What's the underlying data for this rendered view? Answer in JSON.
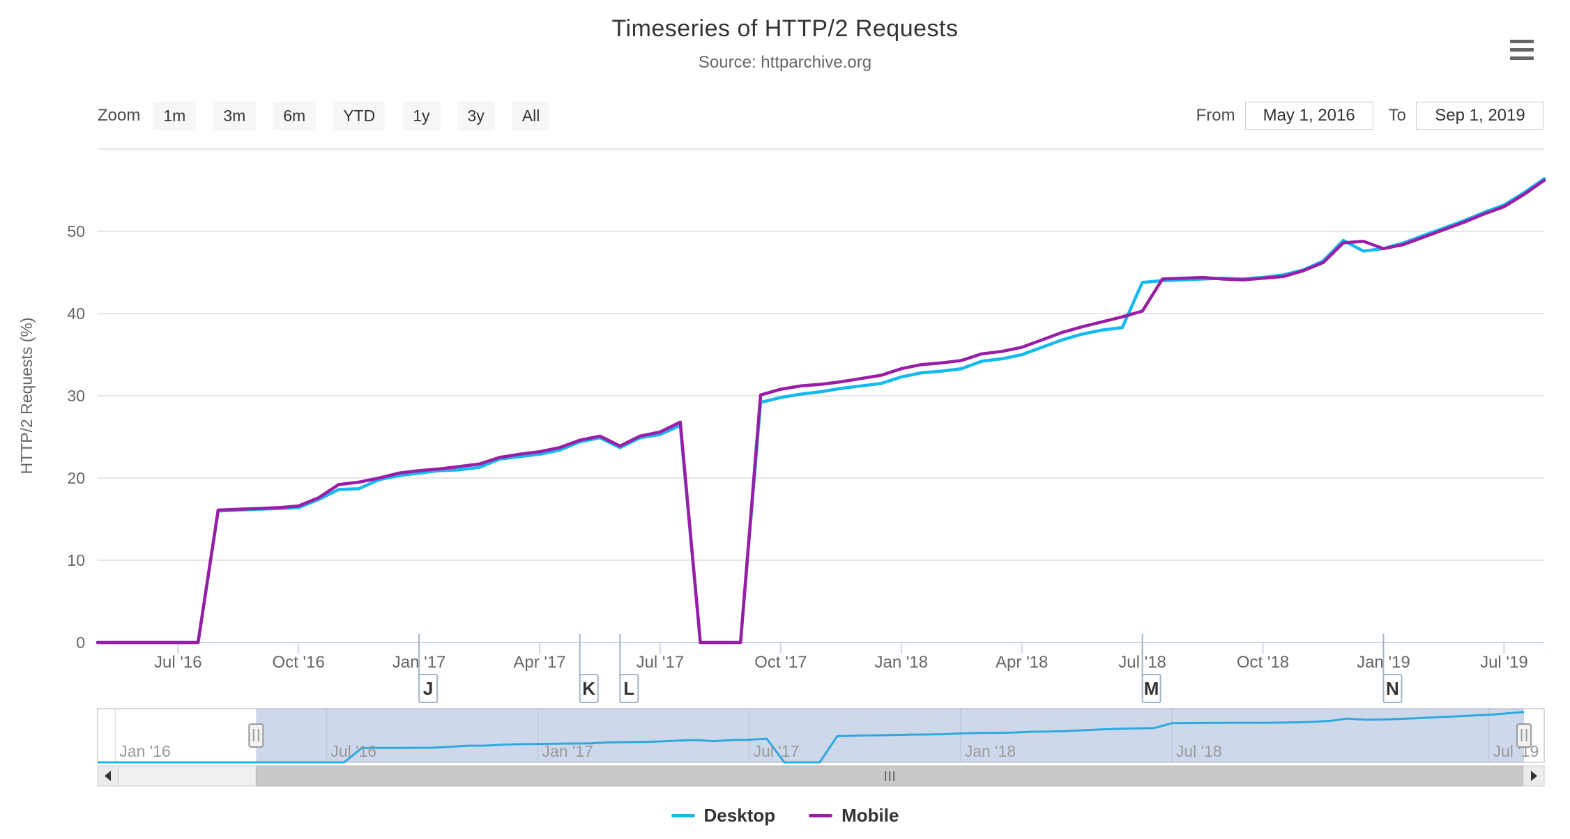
{
  "header": {
    "title": "Timeseries of HTTP/2 Requests",
    "subtitle": "Source: httparchive.org"
  },
  "toolbar": {
    "zoom_label": "Zoom",
    "zoom_buttons": [
      "1m",
      "3m",
      "6m",
      "YTD",
      "1y",
      "3y",
      "All"
    ],
    "from_label": "From",
    "from_value": "May 1, 2016",
    "to_label": "To",
    "to_value": "Sep 1, 2019"
  },
  "menu_icon": "hamburger-menu",
  "legend": [
    {
      "name": "Desktop",
      "color": "#14b9f0"
    },
    {
      "name": "Mobile",
      "color": "#9a1da6"
    }
  ],
  "chart_data": {
    "type": "line",
    "title": "Timeseries of HTTP/2 Requests",
    "subtitle": "Source: httparchive.org",
    "ylabel": "HTTP/2 Requests (%)",
    "ylim": [
      0,
      60
    ],
    "y_ticks": [
      0,
      10,
      20,
      30,
      40,
      50
    ],
    "grid": true,
    "legend_position": "bottom",
    "x_dates": [
      "2016-05-01",
      "2016-05-15",
      "2016-06-01",
      "2016-06-15",
      "2016-07-01",
      "2016-07-15",
      "2016-08-01",
      "2016-08-15",
      "2016-09-01",
      "2016-09-15",
      "2016-10-01",
      "2016-10-15",
      "2016-11-01",
      "2016-11-15",
      "2016-12-01",
      "2016-12-15",
      "2017-01-01",
      "2017-01-15",
      "2017-02-01",
      "2017-02-15",
      "2017-03-01",
      "2017-03-15",
      "2017-04-01",
      "2017-04-15",
      "2017-05-01",
      "2017-05-15",
      "2017-06-01",
      "2017-06-15",
      "2017-07-01",
      "2017-07-15",
      "2017-08-01",
      "2017-08-15",
      "2017-09-01",
      "2017-09-15",
      "2017-10-01",
      "2017-10-15",
      "2017-11-01",
      "2017-11-15",
      "2017-12-01",
      "2017-12-15",
      "2018-01-01",
      "2018-01-15",
      "2018-02-01",
      "2018-02-15",
      "2018-03-01",
      "2018-03-15",
      "2018-04-01",
      "2018-04-15",
      "2018-05-01",
      "2018-05-15",
      "2018-06-01",
      "2018-06-15",
      "2018-07-01",
      "2018-07-15",
      "2018-08-01",
      "2018-08-15",
      "2018-09-01",
      "2018-09-15",
      "2018-10-01",
      "2018-10-15",
      "2018-11-01",
      "2018-11-15",
      "2018-12-01",
      "2018-12-15",
      "2019-01-01",
      "2019-02-01",
      "2019-03-01",
      "2019-04-01",
      "2019-05-01",
      "2019-06-01",
      "2019-07-01",
      "2019-08-01",
      "2019-09-01"
    ],
    "series": [
      {
        "name": "Desktop",
        "color": "#14b9f0",
        "values": [
          0,
          0,
          0,
          0,
          0,
          0,
          16,
          16.1,
          16.2,
          16.3,
          16.4,
          17.4,
          18.6,
          18.7,
          19.8,
          20.3,
          20.6,
          20.9,
          21,
          21.3,
          22.3,
          22.6,
          22.9,
          23.4,
          24.4,
          24.9,
          23.7,
          24.9,
          25.3,
          26.4,
          0,
          0,
          0,
          29.2,
          29.8,
          30.2,
          30.5,
          30.9,
          31.2,
          31.5,
          32.3,
          32.8,
          33,
          33.3,
          34.2,
          34.5,
          35,
          35.9,
          36.8,
          37.5,
          38,
          38.3,
          43.8,
          44,
          44.1,
          44.2,
          44.3,
          44.2,
          44.4,
          44.7,
          45.3,
          46.4,
          48.9,
          47.6,
          47.9,
          48.6,
          49.5,
          50.4,
          51.3,
          52.3,
          53.2,
          54.7,
          56.4
        ]
      },
      {
        "name": "Mobile",
        "color": "#9a1da6",
        "values": [
          0,
          0,
          0,
          0,
          0,
          0,
          16.1,
          16.2,
          16.3,
          16.4,
          16.6,
          17.6,
          19.2,
          19.5,
          20,
          20.6,
          20.9,
          21.1,
          21.4,
          21.7,
          22.5,
          22.9,
          23.2,
          23.7,
          24.6,
          25.1,
          23.9,
          25.1,
          25.6,
          26.8,
          0,
          0,
          0,
          30.1,
          30.8,
          31.2,
          31.4,
          31.7,
          32.1,
          32.5,
          33.3,
          33.8,
          34,
          34.3,
          35.1,
          35.4,
          35.9,
          36.8,
          37.7,
          38.4,
          39,
          39.6,
          40.3,
          44.2,
          44.3,
          44.4,
          44.2,
          44.1,
          44.3,
          44.5,
          45.2,
          46.2,
          48.6,
          48.8,
          47.9,
          48.4,
          49.3,
          50.2,
          51.1,
          52.1,
          53,
          54.5,
          56.2
        ]
      }
    ],
    "x_ticks": [
      {
        "label": "Jul '16",
        "i": 4
      },
      {
        "label": "Oct '16",
        "i": 10
      },
      {
        "label": "Jan '17",
        "i": 16
      },
      {
        "label": "Apr '17",
        "i": 22
      },
      {
        "label": "Jul '17",
        "i": 28
      },
      {
        "label": "Oct '17",
        "i": 34
      },
      {
        "label": "Jan '18",
        "i": 40
      },
      {
        "label": "Apr '18",
        "i": 46
      },
      {
        "label": "Jul '18",
        "i": 52
      },
      {
        "label": "Oct '18",
        "i": 58
      },
      {
        "label": "Jan '19",
        "i": 64
      },
      {
        "label": "Jul '19",
        "i": 70
      }
    ],
    "flags": [
      {
        "label": "J",
        "i": 16
      },
      {
        "label": "K",
        "i": 24
      },
      {
        "label": "L",
        "i": 26
      },
      {
        "label": "M",
        "i": 52
      },
      {
        "label": "N",
        "i": 64
      }
    ],
    "navigator": {
      "series_shown": "Desktop",
      "lead_zero_points": 9,
      "x_ticks": [
        {
          "label": "Jan '16",
          "i": 1
        },
        {
          "label": "Jul '16",
          "i": 13
        },
        {
          "label": "Jan '17",
          "i": 25
        },
        {
          "label": "Jul '17",
          "i": 37
        },
        {
          "label": "Jan '18",
          "i": 49
        },
        {
          "label": "Jul '18",
          "i": 61
        },
        {
          "label": "Jul '19",
          "i": 79
        }
      ]
    },
    "colors": {
      "grid_line": "#e6e6e6",
      "axis_line": "#ccd6eb",
      "axis_label": "#666666",
      "nav_label": "#999999",
      "nav_mask": "rgba(102,133,194,0.32)",
      "flag_border": "#a0b6c8",
      "flag_text": "#333333",
      "scrollbar_track": "#f1f1f3",
      "scrollbar_thumb": "#c9c9c9"
    }
  }
}
